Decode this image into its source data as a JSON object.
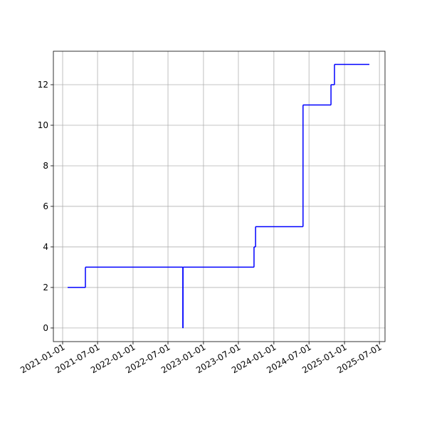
{
  "chart_data": {
    "type": "line",
    "drawstyle": "steps-post",
    "color": "#0000ff",
    "x": [
      "2021-01-27",
      "2021-04-29",
      "2022-09-16",
      "2022-09-17",
      "2023-09-20",
      "2023-09-28",
      "2024-05-31",
      "2024-10-23",
      "2024-11-10",
      "2025-05-10"
    ],
    "values": [
      2,
      3,
      0,
      3,
      4,
      5,
      11,
      12,
      13,
      13
    ],
    "xlim": [
      "2020-11-14",
      "2025-07-30"
    ],
    "xticks": [
      "2021-01-01",
      "2021-07-01",
      "2022-01-01",
      "2022-07-01",
      "2023-01-01",
      "2023-07-01",
      "2024-01-01",
      "2024-07-01",
      "2025-01-01",
      "2025-07-01"
    ],
    "ylim": [
      -0.67,
      13.65
    ],
    "yticks": [
      0,
      2,
      4,
      6,
      8,
      10,
      12
    ],
    "grid": true
  }
}
